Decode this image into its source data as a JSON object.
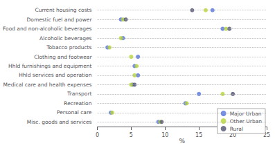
{
  "chart_data": {
    "type": "scatter",
    "orientation": "horizontal",
    "categories": [
      "Current housing costs",
      "Domestic fuel and power",
      "Food and non-alcoholic beverages",
      "Alcoholic beverages",
      "Tobacco products",
      "Clothing and footwear",
      "Hhld furnishings and equipment",
      "Hhld services and operation",
      "Medical care and health expenses",
      "Transport",
      "Recreation",
      "Personal care",
      "Misc. goods and services"
    ],
    "series": [
      {
        "name": "Major Urban",
        "marker": "circle",
        "values": [
          17.0,
          3.5,
          18.5,
          3.8,
          1.5,
          6.0,
          5.5,
          6.0,
          5.2,
          15.0,
          13.0,
          2.0,
          9.0
        ]
      },
      {
        "name": "Other Urban",
        "marker": "circle",
        "values": [
          16.0,
          3.8,
          19.0,
          3.5,
          1.8,
          5.0,
          5.8,
          5.5,
          5.0,
          18.5,
          13.2,
          2.2,
          9.3
        ]
      },
      {
        "name": "Rural",
        "marker": "circle",
        "values": [
          14.0,
          4.2,
          19.5,
          null,
          null,
          null,
          null,
          null,
          5.5,
          20.0,
          null,
          null,
          9.5
        ]
      }
    ],
    "xlabel": "%",
    "xlim": [
      0,
      25
    ],
    "xticks": [
      0,
      5,
      10,
      15,
      20,
      25
    ],
    "grid": true,
    "legend": "lower right"
  }
}
